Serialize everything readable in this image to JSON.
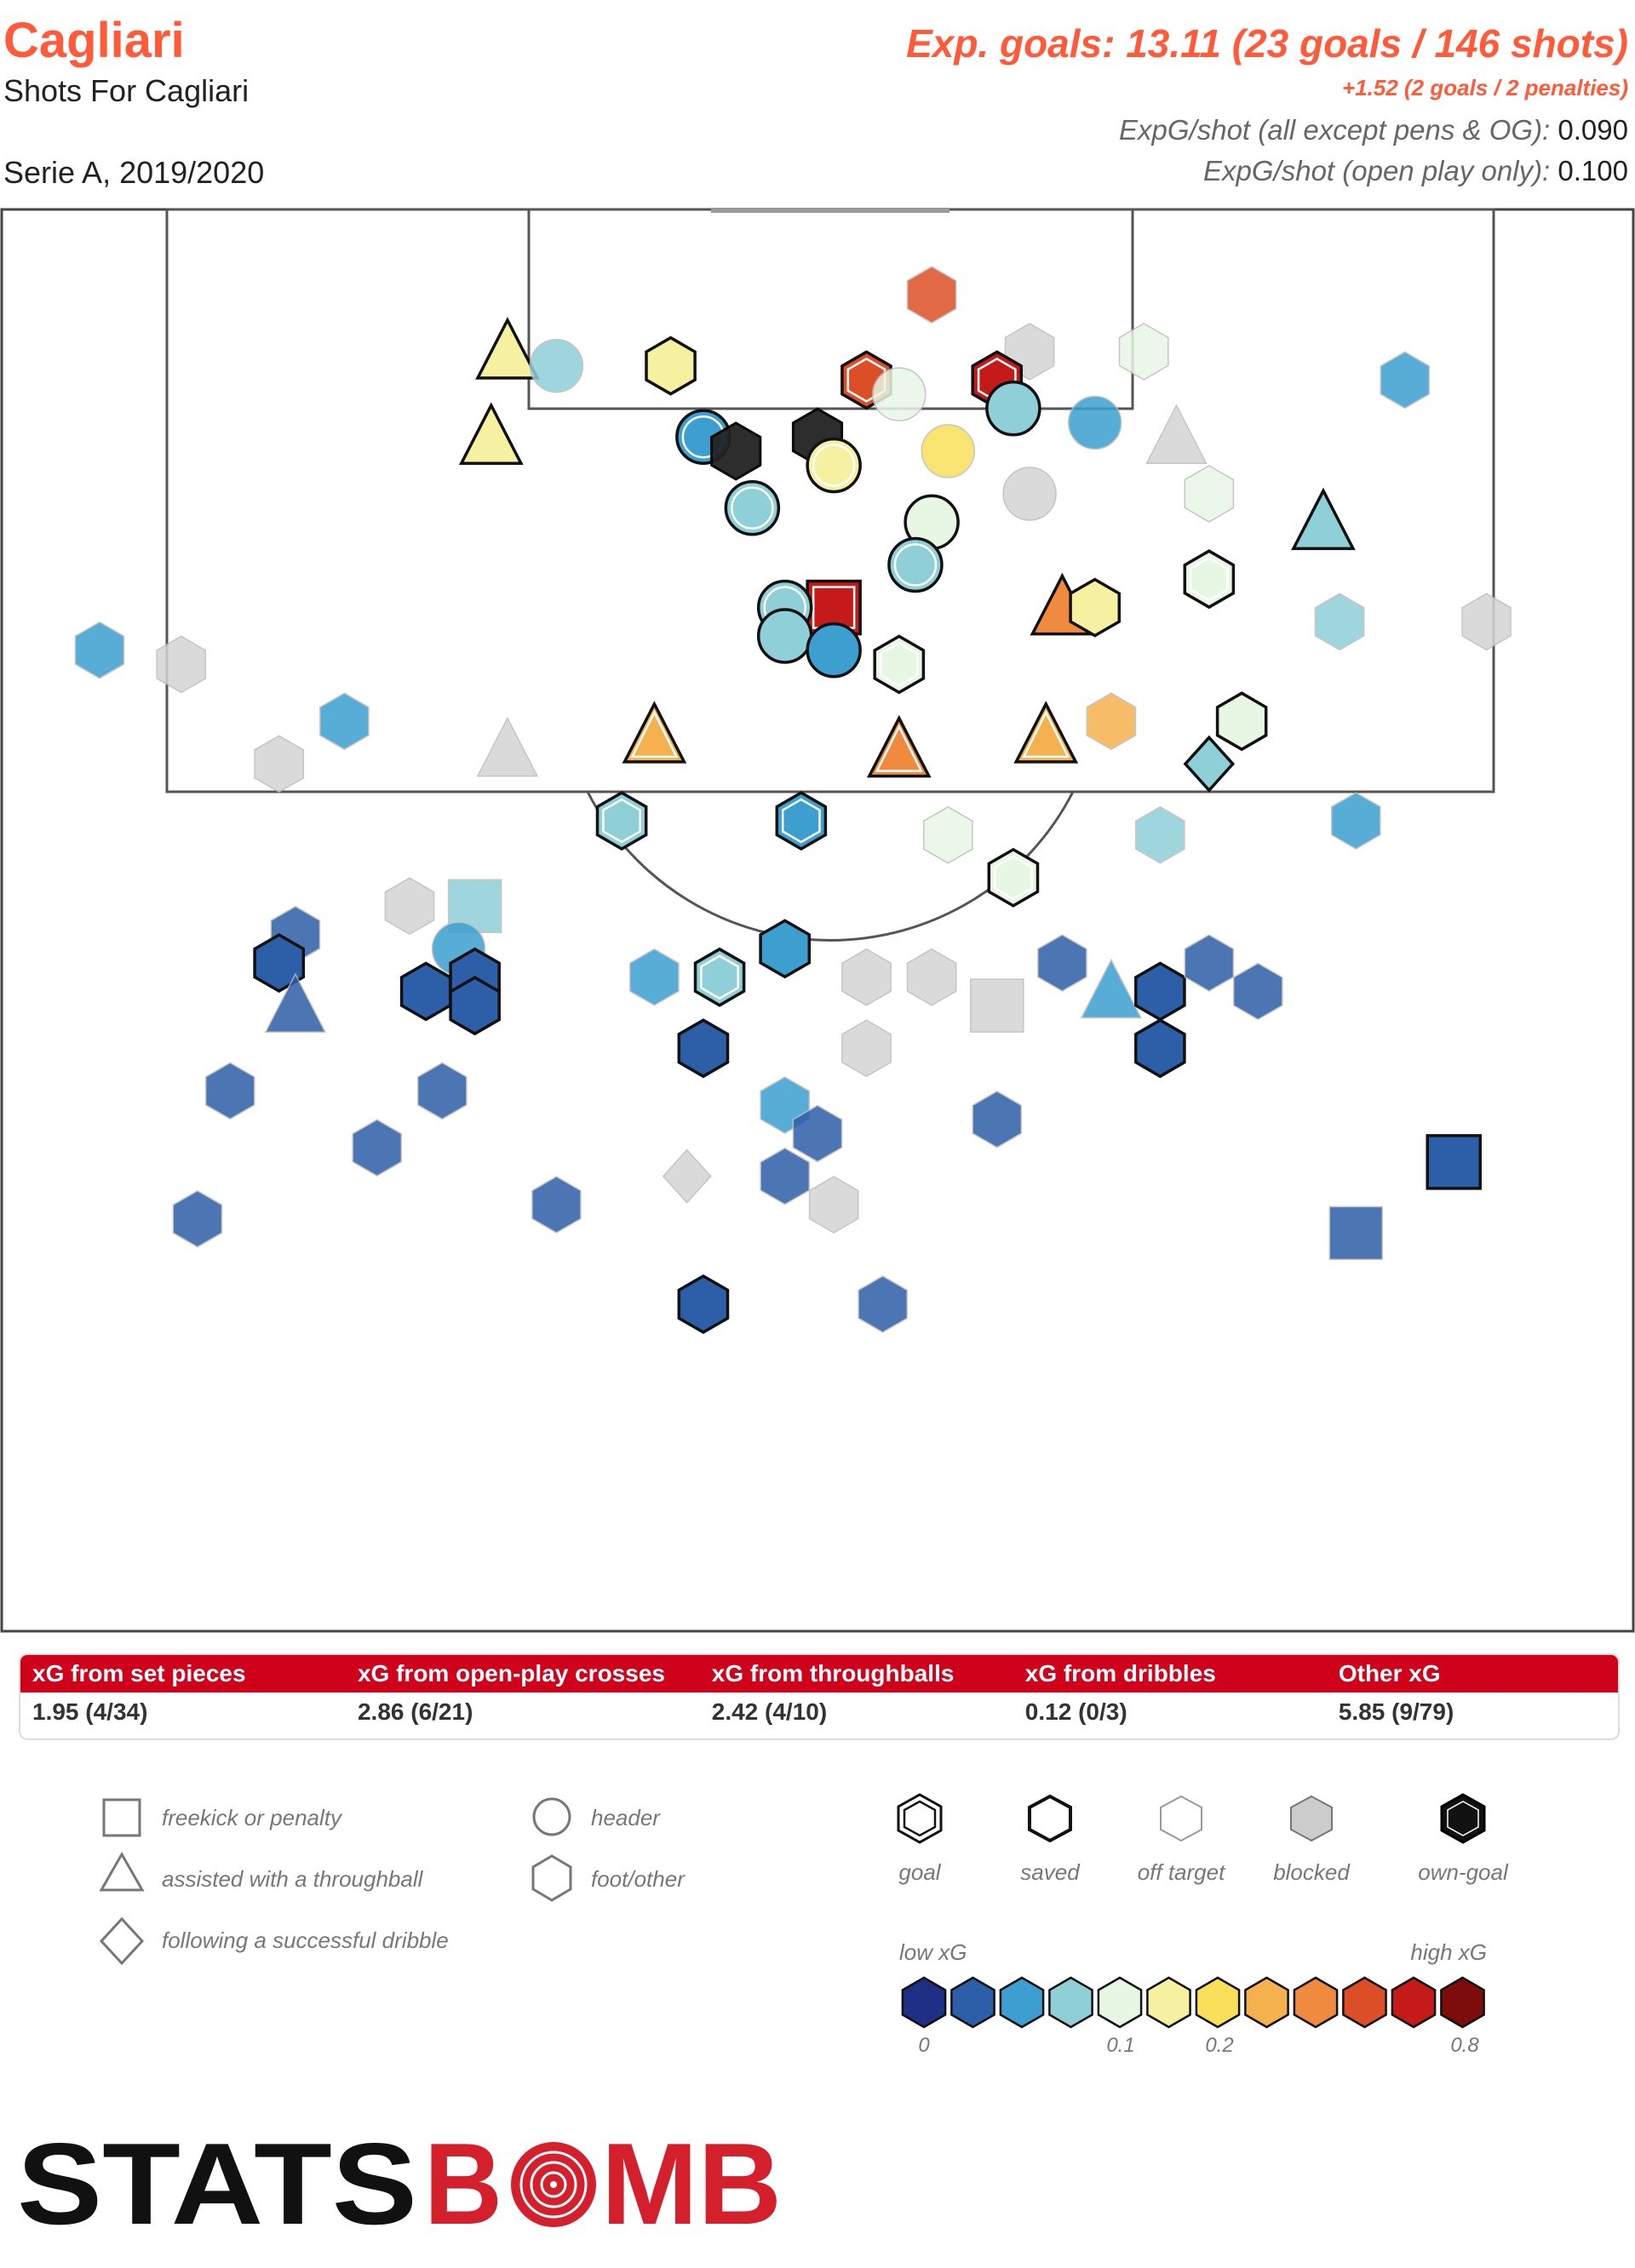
{
  "header": {
    "team": "Cagliari",
    "subtitle": "Shots For Cagliari",
    "season": "Serie A, 2019/2020",
    "xg_headline": "Exp. goals: 13.11 (23 goals / 146 shots)",
    "penalty_line": "+1.52 (2 goals / 2 penalties)",
    "stat1_label": "ExpG/shot (all except pens & OG):",
    "stat1_value": "0.090",
    "stat2_label": "ExpG/shot (open play only):",
    "stat2_value": "0.100"
  },
  "summary": {
    "headers": [
      "xG from set pieces",
      "xG from open-play crosses",
      "xG from throughballs",
      "xG from dribbles",
      "Other xG"
    ],
    "values": [
      "1.95 (4/34)",
      "2.86 (6/21)",
      "2.42 (4/10)",
      "0.12 (0/3)",
      "5.85 (9/79)"
    ]
  },
  "legend": {
    "shape_items": [
      "freekick or penalty",
      "assisted with a throughball",
      "following a successful dribble",
      "header",
      "foot/other"
    ],
    "outcome_items": [
      "goal",
      "saved",
      "off target",
      "blocked",
      "own-goal"
    ],
    "scale_low": "low xG",
    "scale_high": "high xG",
    "scale_ticks": [
      "0",
      "0.1",
      "0.2",
      "0.8"
    ],
    "scale_colors": [
      "#1f2f86",
      "#2d5ea8",
      "#3c9fd0",
      "#8fd0d8",
      "#e8f6e4",
      "#f6f1a0",
      "#f9e05a",
      "#f5b14d",
      "#ef8a3e",
      "#dc4f26",
      "#c41a1a",
      "#7d0c0c"
    ]
  },
  "logo": {
    "text_a": "STATS",
    "text_b": "B",
    "text_c": "MB"
  },
  "colors": {
    "accent": "#ff5b3a",
    "banner": "#d0021b"
  },
  "chart_data": {
    "type": "scatter",
    "title": "Shots For Cagliari",
    "xlabel": "",
    "ylabel": "",
    "shots": [
      {
        "x": 0.31,
        "y": 0.1,
        "shape": "triangle",
        "outcome": "saved",
        "xg": 0.15
      },
      {
        "x": 0.34,
        "y": 0.11,
        "shape": "circle",
        "outcome": "blocked",
        "xg": 0.07
      },
      {
        "x": 0.3,
        "y": 0.16,
        "shape": "triangle",
        "outcome": "saved",
        "xg": 0.15
      },
      {
        "x": 0.41,
        "y": 0.11,
        "shape": "hexagon",
        "outcome": "saved",
        "xg": 0.17
      },
      {
        "x": 0.57,
        "y": 0.06,
        "shape": "hexagon",
        "outcome": "blocked",
        "xg": 0.65
      },
      {
        "x": 0.63,
        "y": 0.1,
        "shape": "hexagon",
        "outcome": "blocked",
        "xg": 0.0
      },
      {
        "x": 0.7,
        "y": 0.1,
        "shape": "hexagon",
        "outcome": "blocked",
        "xg": 0.14
      },
      {
        "x": 0.86,
        "y": 0.12,
        "shape": "hexagon",
        "outcome": "blocked",
        "xg": 0.04
      },
      {
        "x": 0.53,
        "y": 0.12,
        "shape": "hexagon",
        "outcome": "goal",
        "xg": 0.65
      },
      {
        "x": 0.61,
        "y": 0.12,
        "shape": "hexagon",
        "outcome": "goal",
        "xg": 0.7
      },
      {
        "x": 0.55,
        "y": 0.13,
        "shape": "circle",
        "outcome": "blocked",
        "xg": 0.13
      },
      {
        "x": 0.62,
        "y": 0.14,
        "shape": "circle",
        "outcome": "saved",
        "xg": 0.08
      },
      {
        "x": 0.67,
        "y": 0.15,
        "shape": "circle",
        "outcome": "blocked",
        "xg": 0.05
      },
      {
        "x": 0.43,
        "y": 0.16,
        "shape": "circle",
        "outcome": "goal",
        "xg": 0.05
      },
      {
        "x": 0.45,
        "y": 0.17,
        "shape": "hexagon",
        "outcome": "own-goal",
        "xg": 0.0
      },
      {
        "x": 0.5,
        "y": 0.16,
        "shape": "hexagon",
        "outcome": "own-goal",
        "xg": 0.0
      },
      {
        "x": 0.51,
        "y": 0.18,
        "shape": "circle",
        "outcome": "goal",
        "xg": 0.18
      },
      {
        "x": 0.58,
        "y": 0.17,
        "shape": "circle",
        "outcome": "blocked",
        "xg": 0.26
      },
      {
        "x": 0.46,
        "y": 0.21,
        "shape": "circle",
        "outcome": "goal",
        "xg": 0.07
      },
      {
        "x": 0.72,
        "y": 0.16,
        "shape": "triangle",
        "outcome": "blocked",
        "xg": 0.0
      },
      {
        "x": 0.74,
        "y": 0.2,
        "shape": "hexagon",
        "outcome": "blocked",
        "xg": 0.1
      },
      {
        "x": 0.63,
        "y": 0.2,
        "shape": "circle",
        "outcome": "blocked",
        "xg": 0.0
      },
      {
        "x": 0.81,
        "y": 0.22,
        "shape": "triangle",
        "outcome": "saved",
        "xg": 0.06
      },
      {
        "x": 0.74,
        "y": 0.26,
        "shape": "hexagon",
        "outcome": "goal",
        "xg": 0.11
      },
      {
        "x": 0.57,
        "y": 0.22,
        "shape": "circle",
        "outcome": "saved",
        "xg": 0.11
      },
      {
        "x": 0.56,
        "y": 0.25,
        "shape": "circle",
        "outcome": "goal",
        "xg": 0.07
      },
      {
        "x": 0.65,
        "y": 0.28,
        "shape": "triangle",
        "outcome": "saved",
        "xg": 0.4
      },
      {
        "x": 0.67,
        "y": 0.28,
        "shape": "hexagon",
        "outcome": "saved",
        "xg": 0.16
      },
      {
        "x": 0.51,
        "y": 0.28,
        "shape": "square",
        "outcome": "goal",
        "xg": 0.76
      },
      {
        "x": 0.48,
        "y": 0.28,
        "shape": "circle",
        "outcome": "goal",
        "xg": 0.07
      },
      {
        "x": 0.48,
        "y": 0.3,
        "shape": "circle",
        "outcome": "saved",
        "xg": 0.06
      },
      {
        "x": 0.51,
        "y": 0.31,
        "shape": "circle",
        "outcome": "saved",
        "xg": 0.03
      },
      {
        "x": 0.55,
        "y": 0.32,
        "shape": "hexagon",
        "outcome": "goal",
        "xg": 0.12
      },
      {
        "x": 0.82,
        "y": 0.29,
        "shape": "hexagon",
        "outcome": "blocked",
        "xg": 0.06
      },
      {
        "x": 0.91,
        "y": 0.29,
        "shape": "hexagon",
        "outcome": "blocked",
        "xg": 0.0
      },
      {
        "x": 0.06,
        "y": 0.31,
        "shape": "hexagon",
        "outcome": "blocked",
        "xg": 0.03
      },
      {
        "x": 0.11,
        "y": 0.32,
        "shape": "hexagon",
        "outcome": "blocked",
        "xg": 0.0
      },
      {
        "x": 0.21,
        "y": 0.36,
        "shape": "hexagon",
        "outcome": "blocked",
        "xg": 0.03
      },
      {
        "x": 0.17,
        "y": 0.39,
        "shape": "hexagon",
        "outcome": "blocked",
        "xg": 0.0
      },
      {
        "x": 0.31,
        "y": 0.38,
        "shape": "triangle",
        "outcome": "blocked",
        "xg": 0.0
      },
      {
        "x": 0.4,
        "y": 0.37,
        "shape": "triangle",
        "outcome": "goal",
        "xg": 0.32
      },
      {
        "x": 0.55,
        "y": 0.38,
        "shape": "triangle",
        "outcome": "goal",
        "xg": 0.42
      },
      {
        "x": 0.64,
        "y": 0.37,
        "shape": "triangle",
        "outcome": "goal",
        "xg": 0.32
      },
      {
        "x": 0.68,
        "y": 0.36,
        "shape": "hexagon",
        "outcome": "blocked",
        "xg": 0.3
      },
      {
        "x": 0.76,
        "y": 0.36,
        "shape": "hexagon",
        "outcome": "saved",
        "xg": 0.12
      },
      {
        "x": 0.74,
        "y": 0.39,
        "shape": "diamond",
        "outcome": "saved",
        "xg": 0.07
      },
      {
        "x": 0.38,
        "y": 0.43,
        "shape": "hexagon",
        "outcome": "goal",
        "xg": 0.07
      },
      {
        "x": 0.49,
        "y": 0.43,
        "shape": "hexagon",
        "outcome": "goal",
        "xg": 0.05
      },
      {
        "x": 0.58,
        "y": 0.44,
        "shape": "hexagon",
        "outcome": "blocked",
        "xg": 0.12
      },
      {
        "x": 0.62,
        "y": 0.47,
        "shape": "hexagon",
        "outcome": "goal",
        "xg": 0.13
      },
      {
        "x": 0.71,
        "y": 0.44,
        "shape": "hexagon",
        "outcome": "blocked",
        "xg": 0.07
      },
      {
        "x": 0.83,
        "y": 0.43,
        "shape": "hexagon",
        "outcome": "blocked",
        "xg": 0.03
      },
      {
        "x": 0.29,
        "y": 0.49,
        "shape": "square",
        "outcome": "blocked",
        "xg": 0.07
      },
      {
        "x": 0.25,
        "y": 0.49,
        "shape": "hexagon",
        "outcome": "blocked",
        "xg": 0.0
      },
      {
        "x": 0.18,
        "y": 0.51,
        "shape": "hexagon",
        "outcome": "blocked",
        "xg": 0.02
      },
      {
        "x": 0.17,
        "y": 0.53,
        "shape": "hexagon",
        "outcome": "saved",
        "xg": 0.01
      },
      {
        "x": 0.18,
        "y": 0.56,
        "shape": "triangle",
        "outcome": "blocked",
        "xg": 0.02
      },
      {
        "x": 0.28,
        "y": 0.52,
        "shape": "circle",
        "outcome": "blocked",
        "xg": 0.05
      },
      {
        "x": 0.29,
        "y": 0.54,
        "shape": "hexagon",
        "outcome": "saved",
        "xg": 0.02
      },
      {
        "x": 0.26,
        "y": 0.55,
        "shape": "hexagon",
        "outcome": "saved",
        "xg": 0.02
      },
      {
        "x": 0.29,
        "y": 0.56,
        "shape": "hexagon",
        "outcome": "saved",
        "xg": 0.02
      },
      {
        "x": 0.48,
        "y": 0.52,
        "shape": "hexagon",
        "outcome": "saved",
        "xg": 0.05
      },
      {
        "x": 0.4,
        "y": 0.54,
        "shape": "hexagon",
        "outcome": "blocked",
        "xg": 0.04
      },
      {
        "x": 0.44,
        "y": 0.54,
        "shape": "hexagon",
        "outcome": "goal",
        "xg": 0.07
      },
      {
        "x": 0.53,
        "y": 0.54,
        "shape": "hexagon",
        "outcome": "blocked",
        "xg": 0.0
      },
      {
        "x": 0.57,
        "y": 0.54,
        "shape": "hexagon",
        "outcome": "blocked",
        "xg": 0.0
      },
      {
        "x": 0.61,
        "y": 0.56,
        "shape": "square",
        "outcome": "blocked",
        "xg": 0.0
      },
      {
        "x": 0.65,
        "y": 0.53,
        "shape": "hexagon",
        "outcome": "blocked",
        "xg": 0.02
      },
      {
        "x": 0.68,
        "y": 0.55,
        "shape": "triangle",
        "outcome": "blocked",
        "xg": 0.03
      },
      {
        "x": 0.71,
        "y": 0.55,
        "shape": "hexagon",
        "outcome": "saved",
        "xg": 0.01
      },
      {
        "x": 0.74,
        "y": 0.53,
        "shape": "hexagon",
        "outcome": "blocked",
        "xg": 0.02
      },
      {
        "x": 0.77,
        "y": 0.55,
        "shape": "hexagon",
        "outcome": "blocked",
        "xg": 0.02
      },
      {
        "x": 0.71,
        "y": 0.59,
        "shape": "hexagon",
        "outcome": "saved",
        "xg": 0.01
      },
      {
        "x": 0.43,
        "y": 0.59,
        "shape": "hexagon",
        "outcome": "saved",
        "xg": 0.01
      },
      {
        "x": 0.53,
        "y": 0.59,
        "shape": "hexagon",
        "outcome": "blocked",
        "xg": 0.0
      },
      {
        "x": 0.14,
        "y": 0.62,
        "shape": "hexagon",
        "outcome": "blocked",
        "xg": 0.02
      },
      {
        "x": 0.27,
        "y": 0.62,
        "shape": "hexagon",
        "outcome": "blocked",
        "xg": 0.02
      },
      {
        "x": 0.23,
        "y": 0.66,
        "shape": "hexagon",
        "outcome": "blocked",
        "xg": 0.01
      },
      {
        "x": 0.48,
        "y": 0.63,
        "shape": "hexagon",
        "outcome": "blocked",
        "xg": 0.03
      },
      {
        "x": 0.61,
        "y": 0.64,
        "shape": "hexagon",
        "outcome": "blocked",
        "xg": 0.02
      },
      {
        "x": 0.5,
        "y": 0.65,
        "shape": "hexagon",
        "outcome": "blocked",
        "xg": 0.02
      },
      {
        "x": 0.42,
        "y": 0.68,
        "shape": "diamond",
        "outcome": "blocked",
        "xg": 0.0
      },
      {
        "x": 0.48,
        "y": 0.68,
        "shape": "hexagon",
        "outcome": "blocked",
        "xg": 0.02
      },
      {
        "x": 0.51,
        "y": 0.7,
        "shape": "hexagon",
        "outcome": "blocked",
        "xg": 0.0
      },
      {
        "x": 0.12,
        "y": 0.71,
        "shape": "hexagon",
        "outcome": "blocked",
        "xg": 0.02
      },
      {
        "x": 0.34,
        "y": 0.7,
        "shape": "hexagon",
        "outcome": "blocked",
        "xg": 0.01
      },
      {
        "x": 0.89,
        "y": 0.67,
        "shape": "square",
        "outcome": "saved",
        "xg": 0.02
      },
      {
        "x": 0.83,
        "y": 0.72,
        "shape": "square",
        "outcome": "blocked",
        "xg": 0.02
      },
      {
        "x": 0.43,
        "y": 0.77,
        "shape": "hexagon",
        "outcome": "saved",
        "xg": 0.01
      },
      {
        "x": 0.54,
        "y": 0.77,
        "shape": "hexagon",
        "outcome": "blocked",
        "xg": 0.02
      }
    ]
  }
}
